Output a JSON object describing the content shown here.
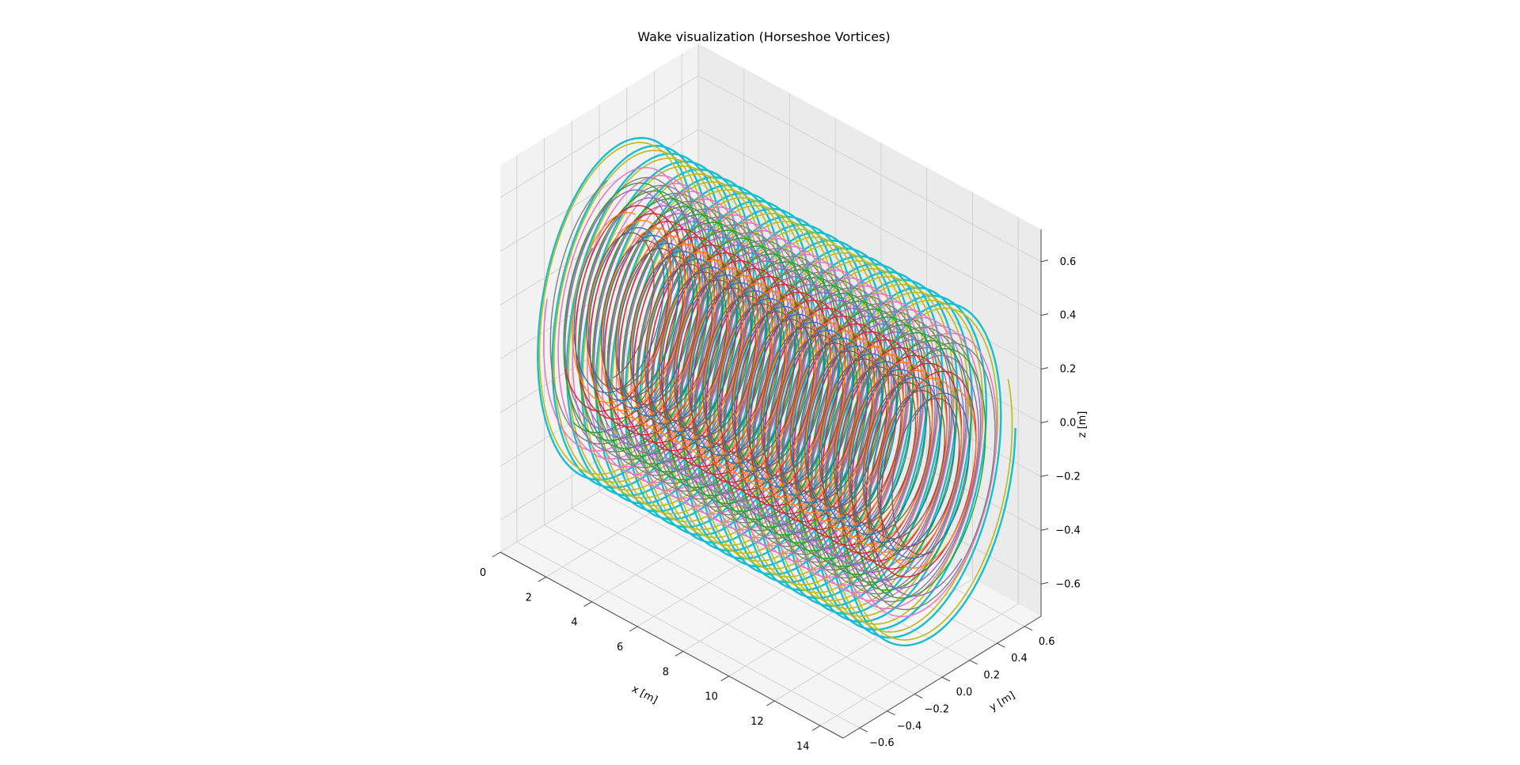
{
  "chart_data": {
    "type": "line",
    "projection": "3d",
    "title": "Wake visualization (Horseshoe Vortices)",
    "xlabel": "x [m]",
    "ylabel": "y [m]",
    "zlabel": "z [m]",
    "xticks": [
      "0",
      "2",
      "4",
      "6",
      "8",
      "10",
      "12",
      "14"
    ],
    "yticks": [
      "−0.6",
      "−0.4",
      "−0.2",
      "0.0",
      "0.2",
      "0.4",
      "0.6"
    ],
    "zticks": [
      "−0.6",
      "−0.4",
      "−0.2",
      "0.0",
      "0.2",
      "0.4",
      "0.6"
    ],
    "xlim": [
      0,
      15
    ],
    "ylim": [
      -0.72,
      0.72
    ],
    "zlim": [
      -0.72,
      0.72
    ],
    "grid": true,
    "wake": {
      "radius": 0.6,
      "x_start": 0.6,
      "x_end": 14.6,
      "turns": 22
    },
    "series": [
      {
        "color": "#17becf",
        "phase_deg": 0,
        "radius_scale": 1.0,
        "width": 2.4
      },
      {
        "color": "#bcbd22",
        "phase_deg": 20,
        "radius_scale": 0.97,
        "width": 1.7
      },
      {
        "color": "#e377c2",
        "phase_deg": 160,
        "radius_scale": 0.85,
        "width": 1.5
      },
      {
        "color": "#7f7f7f",
        "phase_deg": 95,
        "radius_scale": 0.8,
        "width": 1.4
      },
      {
        "color": "#2ca02c",
        "phase_deg": 230,
        "radius_scale": 0.75,
        "width": 1.4
      },
      {
        "color": "#9467bd",
        "phase_deg": 300,
        "radius_scale": 0.7,
        "width": 1.4
      },
      {
        "color": "#d62728",
        "phase_deg": 200,
        "radius_scale": 0.62,
        "width": 1.4
      },
      {
        "color": "#ff7f0e",
        "phase_deg": 60,
        "radius_scale": 0.55,
        "width": 1.3
      },
      {
        "color": "#1f77b4",
        "phase_deg": 120,
        "radius_scale": 0.5,
        "width": 1.3
      },
      {
        "color": "#8c564b",
        "phase_deg": 270,
        "radius_scale": 0.45,
        "width": 1.3
      }
    ]
  }
}
